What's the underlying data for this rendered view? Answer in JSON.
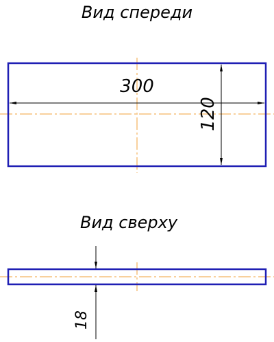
{
  "views": {
    "front": {
      "title": "Вид спереди",
      "dimensions": {
        "length": "300",
        "height": "120"
      }
    },
    "top": {
      "title": "Вид сверху",
      "dimensions": {
        "thickness": "18"
      }
    }
  },
  "colors": {
    "outline": "#1f1fb4",
    "centerline": "#f2a13a",
    "dimension": "#000000",
    "background": "#ffffff"
  }
}
